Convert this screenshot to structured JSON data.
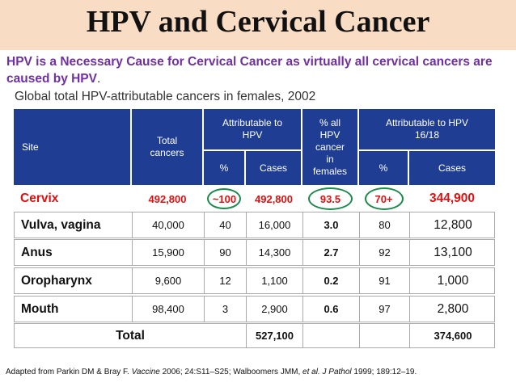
{
  "title": "HPV and Cervical Cancer",
  "intro_main": "HPV is a Necessary Cause for Cervical Cancer as virtually all cervical cancers are caused by HPV",
  "intro_dot": ".",
  "subtitle": "Global total HPV-attributable cancers in females, 2002",
  "headers": {
    "site": "Site",
    "total": "Total cancers",
    "attr_hpv": "Attributable to HPV",
    "pct": "%",
    "cases": "Cases",
    "pct_all": "% all HPV cancer in females",
    "attr_1618": "Attributable to HPV 16/18",
    "pct2": "%",
    "cases2": "Cases"
  },
  "rows": [
    {
      "site": "Cervix",
      "total": "492,800",
      "pct": "~100",
      "cases": "492,800",
      "pct_all": "93.5",
      "pct1618": "70+",
      "cases1618": "344,900"
    },
    {
      "site": "Vulva, vagina",
      "total": "40,000",
      "pct": "40",
      "cases": "16,000",
      "pct_all": "3.0",
      "pct1618": "80",
      "cases1618": "12,800"
    },
    {
      "site": "Anus",
      "total": "15,900",
      "pct": "90",
      "cases": "14,300",
      "pct_all": "2.7",
      "pct1618": "92",
      "cases1618": "13,100"
    },
    {
      "site": "Oropharynx",
      "total": "9,600",
      "pct": "12",
      "cases": "1,100",
      "pct_all": "0.2",
      "pct1618": "91",
      "cases1618": "1,000"
    },
    {
      "site": "Mouth",
      "total": "98,400",
      "pct": "3",
      "cases": "2,900",
      "pct_all": "0.6",
      "pct1618": "97",
      "cases1618": "2,800"
    }
  ],
  "total_row": {
    "label": "Total",
    "cases": "527,100",
    "cases1618": "374,600"
  },
  "footer": {
    "part1": "Adapted from Parkin DM & Bray F. ",
    "journal1": "Vaccine",
    "part2": " 2006; 24:S11–S25; Walboomers JMM, ",
    "etal": "et al. J Pathol",
    "part3": " 1999; 189:12–19."
  }
}
